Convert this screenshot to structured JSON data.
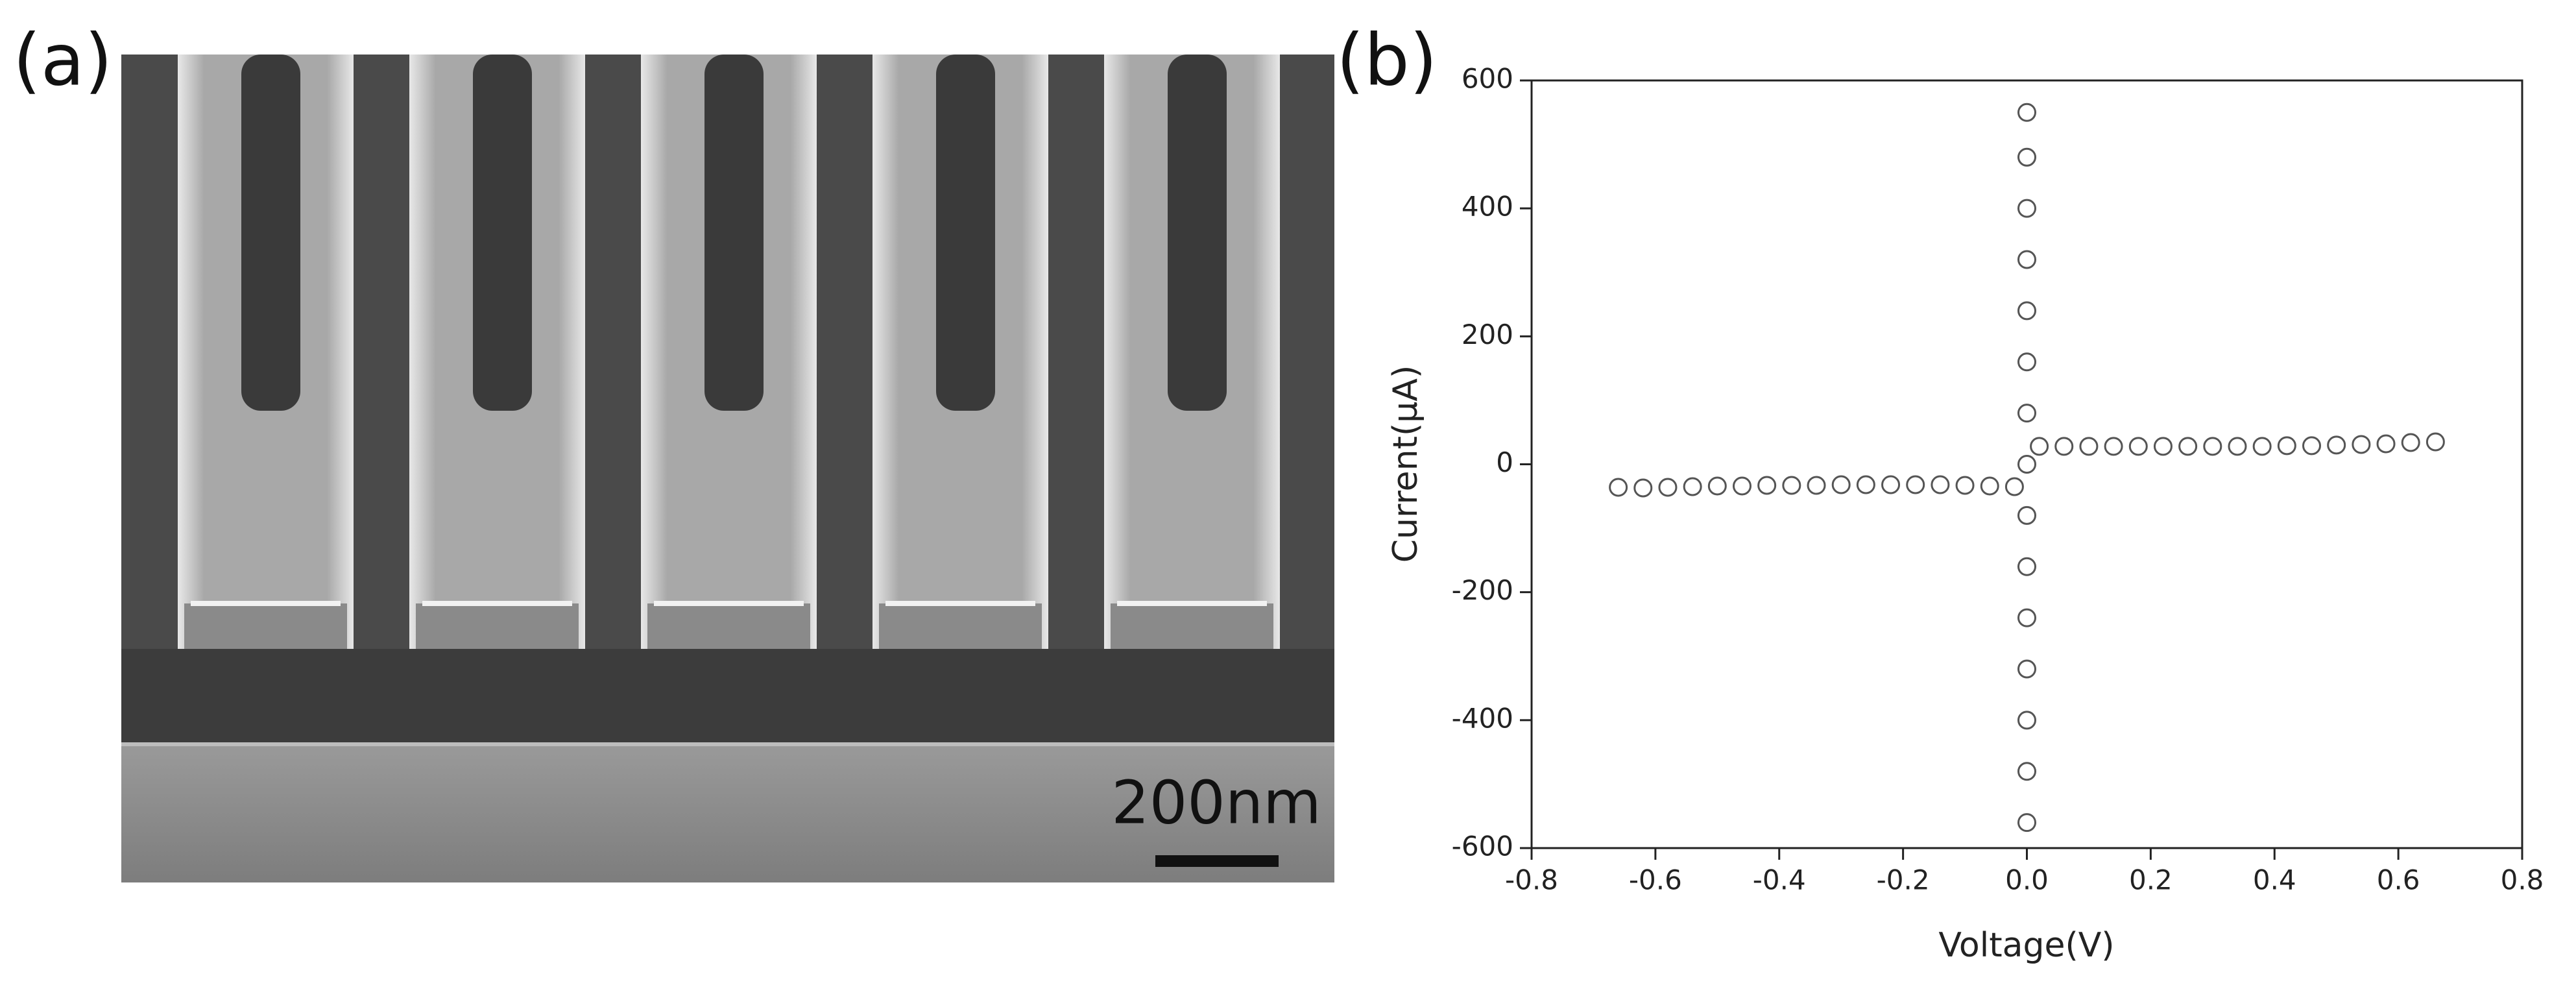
{
  "panel_labels": [
    "(a)",
    "(b)"
  ],
  "scale_bar": "200nm",
  "chart_data": {
    "type": "scatter",
    "xlabel": "Voltage(V)",
    "ylabel": "Current(μA)",
    "x": [
      -0.66,
      -0.62,
      -0.58,
      -0.54,
      -0.5,
      -0.46,
      -0.42,
      -0.38,
      -0.34,
      -0.3,
      -0.26,
      -0.22,
      -0.18,
      -0.14,
      -0.1,
      -0.06,
      -0.02,
      0,
      0,
      0,
      0,
      0,
      0,
      0,
      0,
      0,
      0,
      0,
      0,
      0,
      0,
      0,
      0.02,
      0.06,
      0.1,
      0.14,
      0.18,
      0.22,
      0.26,
      0.3,
      0.34,
      0.38,
      0.42,
      0.46,
      0.5,
      0.54,
      0.58,
      0.62,
      0.66
    ],
    "values": [
      -36,
      -37,
      -36,
      -35,
      -34,
      -34,
      -33,
      -33,
      -33,
      -32,
      -32,
      -32,
      -32,
      -32,
      -33,
      -34,
      -35,
      -560,
      -480,
      -400,
      -320,
      -240,
      -160,
      -80,
      0,
      80,
      160,
      240,
      320,
      400,
      480,
      550,
      28,
      28,
      28,
      28,
      28,
      28,
      28,
      28,
      28,
      28,
      29,
      29,
      30,
      31,
      32,
      34,
      35
    ],
    "color": "#555555",
    "xlim": [
      -0.8,
      0.8
    ],
    "xticks": [
      -0.8,
      -0.6,
      -0.4,
      -0.2,
      {
        "value": 0,
        "label": "0.0"
      },
      0.2,
      0.4,
      0.6,
      0.8
    ],
    "ylim": [
      -600,
      600
    ],
    "yticks": [
      -600,
      -400,
      -200,
      0,
      200,
      400,
      600
    ]
  }
}
